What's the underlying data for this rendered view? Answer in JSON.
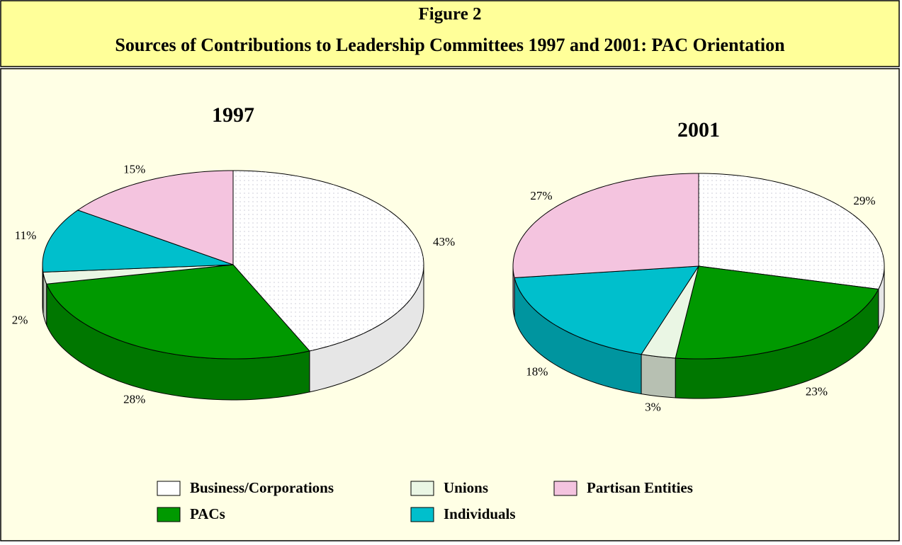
{
  "title": "Figure 2",
  "subtitle": "Sources of Contributions to Leadership Committees 1997 and 2001:  PAC Orientation",
  "chart_data": [
    {
      "type": "pie",
      "title": "1997",
      "categories": [
        "Business/Corporations",
        "PACs",
        "Unions",
        "Individuals",
        "Partisan Entities"
      ],
      "values": [
        43,
        28,
        2,
        11,
        15
      ],
      "value_labels": [
        "43%",
        "28%",
        "2%",
        "11%",
        "15%"
      ],
      "colors": [
        "#ffffff",
        "#009900",
        "#eaf6e4",
        "#00bfcc",
        "#f4c4df"
      ]
    },
    {
      "type": "pie",
      "title": "2001",
      "categories": [
        "Business/Corporations",
        "PACs",
        "Unions",
        "Individuals",
        "Partisan Entities"
      ],
      "values": [
        29,
        23,
        3,
        18,
        27
      ],
      "value_labels": [
        "29%",
        "23%",
        "3%",
        "18%",
        "27%"
      ],
      "colors": [
        "#ffffff",
        "#009900",
        "#eaf6e4",
        "#00bfcc",
        "#f4c4df"
      ]
    }
  ]
}
